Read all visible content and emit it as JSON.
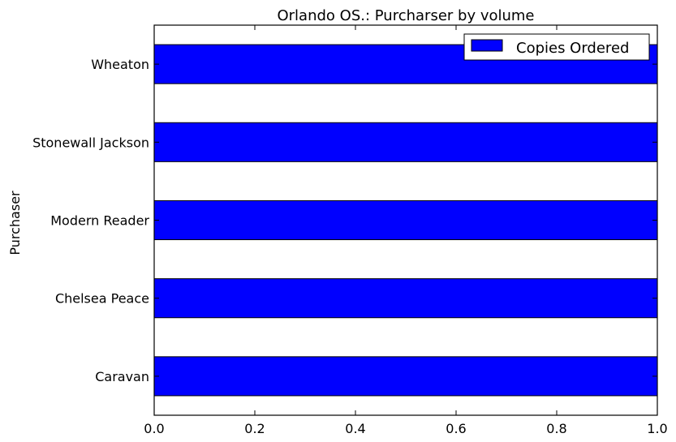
{
  "chart_data": {
    "type": "bar",
    "orientation": "horizontal",
    "title": "Orlando OS.: Purcharser by volume",
    "xlabel": "",
    "ylabel": "Purchaser",
    "categories": [
      "Caravan",
      "Chelsea Peace",
      "Modern Reader",
      "Stonewall Jackson",
      "Wheaton"
    ],
    "series": [
      {
        "name": "Copies Ordered",
        "values": [
          1.0,
          1.0,
          1.0,
          1.0,
          1.0
        ],
        "color": "#0000ff"
      }
    ],
    "xlim": [
      0.0,
      1.0
    ],
    "xticks": [
      "0.0",
      "0.2",
      "0.4",
      "0.6",
      "0.8",
      "1.0"
    ],
    "grid": false,
    "legend_position": "top-right"
  }
}
